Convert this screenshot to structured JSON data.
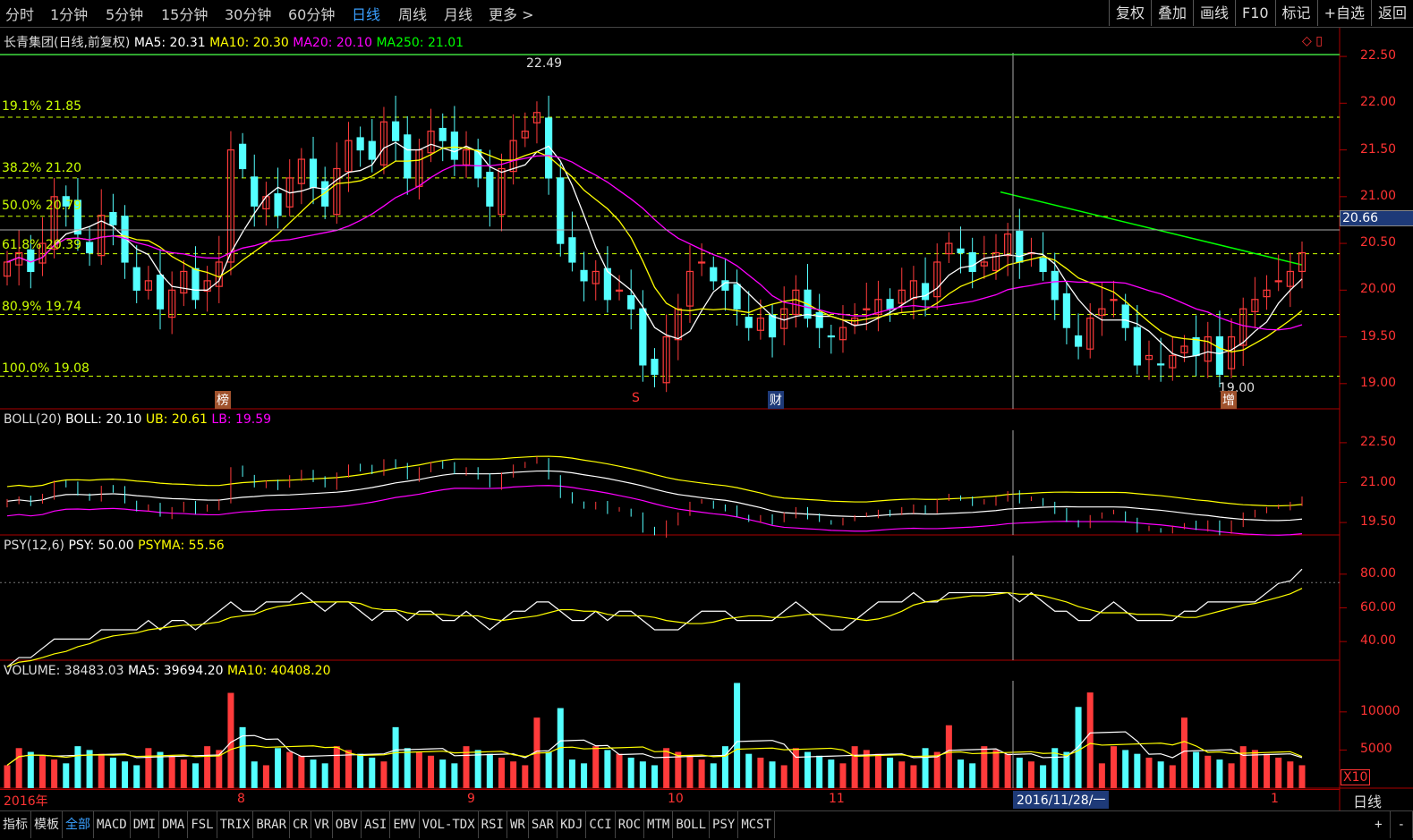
{
  "periods": [
    "分时",
    "1分钟",
    "5分钟",
    "15分钟",
    "30分钟",
    "60分钟",
    "日线",
    "周线",
    "月线",
    "更多 >"
  ],
  "active_period": "日线",
  "top_buttons": [
    "复权",
    "叠加",
    "画线",
    "F10",
    "标记",
    "+自选",
    "返回"
  ],
  "main_panel": {
    "title": "长青集团(日线,前复权)",
    "ma5": "MA5: 20.31",
    "ma10": "MA10: 20.30",
    "ma20": "MA20: 20.10",
    "ma250": "MA250: 21.01",
    "fib_labels": [
      "19.1% 21.85",
      "38.2% 21.20",
      "50.0% 20.79",
      "61.8% 20.39",
      "80.9% 19.74",
      "100.0% 19.08"
    ],
    "high_label": "22.49",
    "low_label": "19.00",
    "crosshair_price": "20.66",
    "markers": [
      "榜",
      "S",
      "财",
      "增"
    ],
    "yticks": [
      "22.50",
      "22.00",
      "21.50",
      "21.00",
      "20.50",
      "20.00",
      "19.50",
      "19.00"
    ]
  },
  "boll_panel": {
    "name": "BOLL(20)",
    "boll": "BOLL: 20.10",
    "ub": "UB: 20.61",
    "lb": "LB: 19.59",
    "yticks": [
      "22.50",
      "21.00",
      "19.50"
    ]
  },
  "psy_panel": {
    "name": "PSY(12,6)",
    "psy": "PSY: 50.00",
    "psyma": "PSYMA: 55.56",
    "yticks": [
      "80.00",
      "60.00",
      "40.00"
    ]
  },
  "volume_panel": {
    "volume": "VOLUME: 38483.03",
    "ma5": "MA5: 39694.20",
    "ma10": "MA10: 40408.20",
    "yticks": [
      "10000",
      "5000"
    ],
    "unit": "X10"
  },
  "date_axis": {
    "labels": [
      "2016年",
      "8",
      "9",
      "10",
      "11",
      "1"
    ],
    "crosshair_date": "2016/11/28/一",
    "period_label": "日线"
  },
  "bottom_tabs": [
    "指标",
    "模板",
    "全部",
    "MACD",
    "DMI",
    "DMA",
    "FSL",
    "TRIX",
    "BRAR",
    "CR",
    "VR",
    "OBV",
    "ASI",
    "EMV",
    "VOL-TDX",
    "RSI",
    "WR",
    "SAR",
    "KDJ",
    "CCI",
    "ROC",
    "MTM",
    "BOLL",
    "PSY",
    "MCST"
  ],
  "selected_tab": "全部",
  "bottom_right": [
    "+",
    "-"
  ],
  "colors": {
    "up": "#ff3b3b",
    "down": "#54ffff",
    "ma5": "#ffffff",
    "ma10": "#ffff00",
    "ma20": "#ff00ff",
    "ma250": "#00ff00",
    "fib": "#ccff00"
  },
  "chart_data": {
    "type": "candlestick",
    "date_range": [
      "2016-07",
      "2017-01"
    ],
    "price_range": [
      19.0,
      22.5
    ],
    "closes": [
      20.3,
      20.4,
      20.2,
      20.5,
      21.0,
      20.9,
      20.6,
      20.4,
      20.8,
      20.7,
      20.3,
      20.0,
      20.1,
      19.8,
      20.0,
      20.2,
      19.9,
      20.1,
      20.3,
      21.5,
      21.3,
      20.9,
      21.0,
      20.8,
      21.2,
      21.4,
      21.1,
      20.9,
      21.3,
      21.6,
      21.5,
      21.4,
      21.8,
      21.6,
      21.2,
      21.5,
      21.7,
      21.6,
      21.4,
      21.5,
      21.2,
      20.9,
      21.3,
      21.6,
      21.7,
      21.9,
      21.2,
      20.5,
      20.3,
      20.1,
      20.2,
      19.9,
      20.0,
      19.8,
      19.2,
      19.1,
      19.5,
      19.8,
      20.2,
      20.3,
      20.1,
      20.0,
      19.8,
      19.6,
      19.7,
      19.5,
      19.8,
      20.0,
      19.7,
      19.6,
      19.5,
      19.6,
      19.7,
      19.8,
      19.9,
      19.8,
      20.0,
      20.1,
      19.9,
      20.3,
      20.5,
      20.4,
      20.2,
      20.3,
      20.4,
      20.6,
      20.3,
      20.4,
      20.2,
      19.9,
      19.6,
      19.4,
      19.7,
      19.8,
      19.9,
      19.6,
      19.2,
      19.3,
      19.2,
      19.3,
      19.4,
      19.3,
      19.5,
      19.1,
      19.5,
      19.8,
      19.9,
      20.0,
      20.1,
      20.2,
      20.4
    ]
  }
}
